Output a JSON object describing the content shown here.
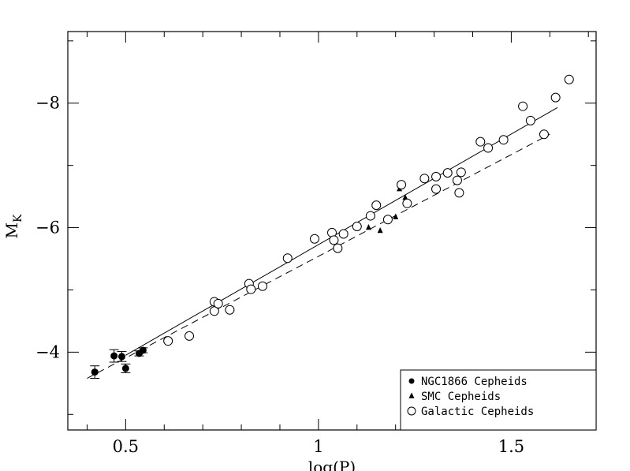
{
  "chart_data": {
    "type": "scatter",
    "title": "",
    "xlabel": "log(P)",
    "ylabel": "M",
    "ylabel_subscript": "K",
    "xlim": [
      0.35,
      1.72
    ],
    "ylim": [
      -2.75,
      -9.15
    ],
    "x_ticks": [
      {
        "value": 0.5,
        "label": "0.5"
      },
      {
        "value": 1.0,
        "label": "1"
      },
      {
        "value": 1.5,
        "label": "1.5"
      }
    ],
    "y_ticks": [
      {
        "value": -4,
        "label": "−4"
      },
      {
        "value": -6,
        "label": "−6"
      },
      {
        "value": -8,
        "label": "−8"
      }
    ],
    "legend_position": "bottom-right",
    "series": [
      {
        "name": "NGC1866 Cepheids",
        "marker": "filled-circle",
        "error_bars": true,
        "points": [
          {
            "x": 0.42,
            "y": -3.68,
            "err": 0.1
          },
          {
            "x": 0.47,
            "y": -3.94,
            "err": 0.1
          },
          {
            "x": 0.49,
            "y": -3.93,
            "err": 0.08
          },
          {
            "x": 0.5,
            "y": -3.74,
            "err": 0.07
          },
          {
            "x": 0.535,
            "y": -3.98,
            "err": 0.04
          },
          {
            "x": 0.545,
            "y": -4.03,
            "err": 0.04
          }
        ]
      },
      {
        "name": "SMC Cepheids",
        "marker": "filled-triangle",
        "points": [
          {
            "x": 1.13,
            "y": -6.0
          },
          {
            "x": 1.16,
            "y": -5.95
          },
          {
            "x": 1.2,
            "y": -6.17
          },
          {
            "x": 1.21,
            "y": -6.62
          },
          {
            "x": 1.225,
            "y": -6.48
          }
        ]
      },
      {
        "name": "Galactic Cepheids",
        "marker": "open-circle",
        "points": [
          {
            "x": 0.61,
            "y": -4.18
          },
          {
            "x": 0.665,
            "y": -4.26
          },
          {
            "x": 0.73,
            "y": -4.81
          },
          {
            "x": 0.73,
            "y": -4.66
          },
          {
            "x": 0.74,
            "y": -4.78
          },
          {
            "x": 0.77,
            "y": -4.68
          },
          {
            "x": 0.82,
            "y": -5.1
          },
          {
            "x": 0.825,
            "y": -5.01
          },
          {
            "x": 0.855,
            "y": -5.06
          },
          {
            "x": 0.92,
            "y": -5.51
          },
          {
            "x": 0.99,
            "y": -5.82
          },
          {
            "x": 1.035,
            "y": -5.92
          },
          {
            "x": 1.04,
            "y": -5.8
          },
          {
            "x": 1.05,
            "y": -5.67
          },
          {
            "x": 1.065,
            "y": -5.9
          },
          {
            "x": 1.1,
            "y": -6.02
          },
          {
            "x": 1.135,
            "y": -6.19
          },
          {
            "x": 1.15,
            "y": -6.36
          },
          {
            "x": 1.18,
            "y": -6.13
          },
          {
            "x": 1.215,
            "y": -6.69
          },
          {
            "x": 1.23,
            "y": -6.39
          },
          {
            "x": 1.275,
            "y": -6.79
          },
          {
            "x": 1.305,
            "y": -6.82
          },
          {
            "x": 1.305,
            "y": -6.62
          },
          {
            "x": 1.335,
            "y": -6.88
          },
          {
            "x": 1.36,
            "y": -6.76
          },
          {
            "x": 1.365,
            "y": -6.56
          },
          {
            "x": 1.37,
            "y": -6.89
          },
          {
            "x": 1.42,
            "y": -7.38
          },
          {
            "x": 1.44,
            "y": -7.28
          },
          {
            "x": 1.48,
            "y": -7.41
          },
          {
            "x": 1.53,
            "y": -7.95
          },
          {
            "x": 1.55,
            "y": -7.72
          },
          {
            "x": 1.585,
            "y": -7.5
          },
          {
            "x": 1.615,
            "y": -8.09
          },
          {
            "x": 1.65,
            "y": -8.38
          }
        ]
      }
    ],
    "fit_lines": [
      {
        "style": "solid",
        "x": [
          0.5,
          1.62
        ],
        "y": [
          -3.95,
          -7.93
        ]
      },
      {
        "style": "dashed",
        "x": [
          0.4,
          1.6
        ],
        "y": [
          -3.58,
          -7.5
        ]
      }
    ]
  }
}
